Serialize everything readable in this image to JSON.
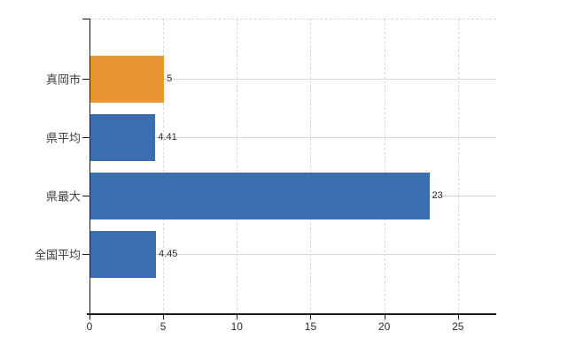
{
  "chart_data": {
    "type": "bar",
    "orientation": "horizontal",
    "title": "",
    "categories": [
      "真岡市",
      "県平均",
      "県最大",
      "全国平均"
    ],
    "values": [
      5,
      4.41,
      23,
      4.45
    ],
    "value_labels": [
      "5",
      "4.41",
      "23",
      "4.45"
    ],
    "series": [
      {
        "name": "",
        "values": [
          5,
          4.41,
          23,
          4.45
        ]
      }
    ],
    "x_ticks": [
      "0",
      "5",
      "10",
      "15",
      "20",
      "25"
    ],
    "x_tick_values": [
      0,
      5,
      10,
      15,
      20,
      25
    ],
    "xlim": [
      0,
      27.6
    ],
    "xlabel": "",
    "ylabel": "",
    "grid": true,
    "legend": false,
    "colors": {
      "highlight_bar": "#ea9634",
      "default_bar": "#3a6eae",
      "bar_colors": [
        "#ea9634",
        "#3a6eae",
        "#3a6eae",
        "#3a6eae"
      ],
      "gridline": "#d8d8d8",
      "axis": "#1a1a1a",
      "text": "#2b2b2b",
      "background": "#ffffff"
    }
  }
}
